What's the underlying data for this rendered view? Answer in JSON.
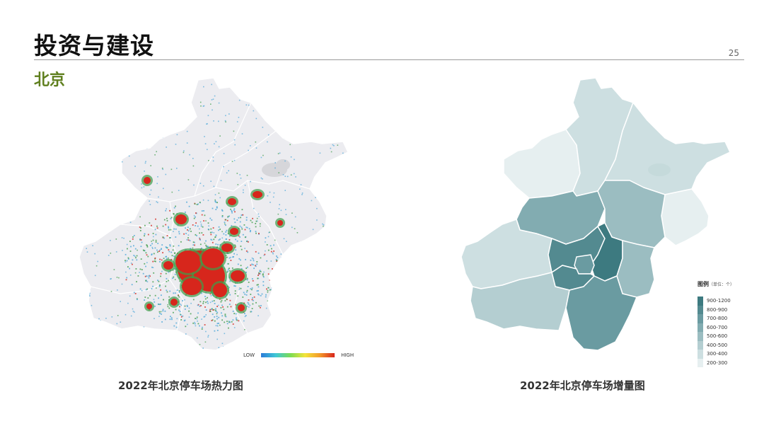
{
  "page": {
    "title": "投资与建设",
    "page_number": "25",
    "subtitle": "北京"
  },
  "heat_map": {
    "caption": "2022年北京停车场热力图",
    "legend_low": "LOW",
    "legend_high": "HIGH",
    "colors": {
      "region": "#ececf0",
      "border": "#ffffff",
      "hot": "#d7261c",
      "warm": "#3f9c48",
      "cool": "#4aa6d8"
    }
  },
  "increase_map": {
    "caption": "2022年北京停车场增量图",
    "legend_title": "图例",
    "legend_unit": "（单位：个）",
    "legend": [
      {
        "label": "900-1200",
        "color": "#3d7a80"
      },
      {
        "label": "800-900",
        "color": "#538a90"
      },
      {
        "label": "700-800",
        "color": "#6a9ba1"
      },
      {
        "label": "600-700",
        "color": "#82acb1"
      },
      {
        "label": "500-600",
        "color": "#9bbdc1"
      },
      {
        "label": "400-500",
        "color": "#b4ced1"
      },
      {
        "label": "300-400",
        "color": "#cddfe1"
      },
      {
        "label": "200-300",
        "color": "#e6eff0"
      }
    ]
  }
}
